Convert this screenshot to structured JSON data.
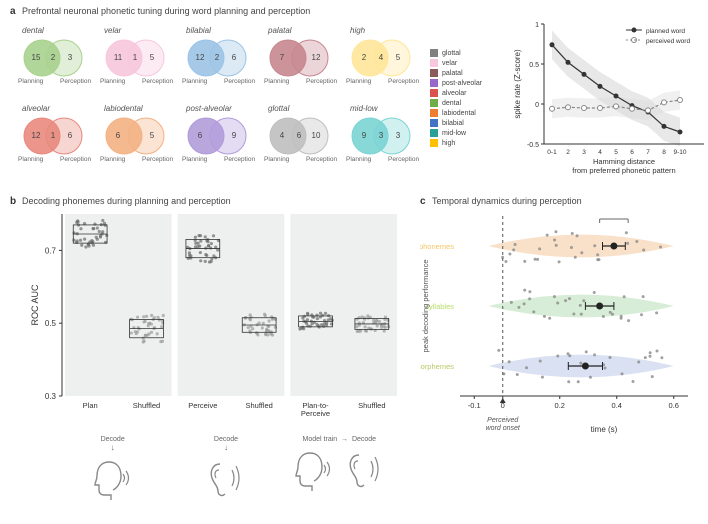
{
  "panel_a": {
    "label": "a",
    "title": "Prefrontal neuronal phonetic tuning during word planning and perception",
    "venns": [
      {
        "name": "dental",
        "color": "#a9d18e",
        "plan": 15,
        "both": 2,
        "perc": 3
      },
      {
        "name": "velar",
        "color": "#f7c7dc",
        "plan": 11,
        "both": 1,
        "perc": 5
      },
      {
        "name": "bilabial",
        "color": "#9cc3e6",
        "plan": 12,
        "both": 2,
        "perc": 6
      },
      {
        "name": "palatal",
        "color": "#c6878f",
        "plan": 7,
        "both": "",
        "perc": 12
      },
      {
        "name": "high",
        "color": "#ffe699",
        "plan": 2,
        "both": 4,
        "perc": 5
      },
      {
        "name": "alveolar",
        "color": "#e9897e",
        "plan": 12,
        "both": 1,
        "perc": 6
      },
      {
        "name": "labiodental",
        "color": "#f4b183",
        "plan": 6,
        "both": "",
        "perc": 5
      },
      {
        "name": "post-alveolar",
        "color": "#b19cd9",
        "plan": 6,
        "both": "",
        "perc": 9
      },
      {
        "name": "glottal",
        "color": "#bfbfbf",
        "plan": 4,
        "both": 6,
        "perc": 10
      },
      {
        "name": "mid-low",
        "color": "#7bd4d4",
        "plan": 9,
        "both": 3,
        "perc": 3
      }
    ],
    "legend": [
      {
        "label": "glottal",
        "color": "#808080"
      },
      {
        "label": "velar",
        "color": "#f7c7dc"
      },
      {
        "label": "palatal",
        "color": "#8b5a5a"
      },
      {
        "label": "post-alveolar",
        "color": "#9966cc"
      },
      {
        "label": "alveolar",
        "color": "#d9534f"
      },
      {
        "label": "dental",
        "color": "#70ad47"
      },
      {
        "label": "labiodental",
        "color": "#ed7d31"
      },
      {
        "label": "bilabial",
        "color": "#4472c4"
      },
      {
        "label": "mid-low",
        "color": "#2aa198"
      },
      {
        "label": "high",
        "color": "#ffc000"
      }
    ],
    "plan_label": "Planning",
    "perc_label": "Perception",
    "spike": {
      "ylabel": "spike rate (Z-score)",
      "xlabel": "Hamming distance\nfrom preferred phonetic pattern",
      "xlim": [
        0,
        10
      ],
      "ylim": [
        -0.5,
        1.0
      ],
      "yticks": [
        -0.5,
        0,
        0.5,
        1.0
      ],
      "xticks": [
        "0-1",
        "2",
        "3",
        "4",
        "5",
        "6",
        "7",
        "8",
        "9-10"
      ],
      "legend": [
        {
          "label": "planned word",
          "style": "solid",
          "marker": "filled"
        },
        {
          "label": "perceived word",
          "style": "dashed",
          "marker": "open"
        }
      ],
      "planned": {
        "x": [
          0.5,
          1.5,
          2.5,
          3.5,
          4.5,
          5.5,
          6.5,
          7.5,
          8.5
        ],
        "y": [
          0.74,
          0.52,
          0.37,
          0.22,
          0.1,
          -0.02,
          -0.1,
          -0.28,
          -0.35
        ],
        "color": "#333333"
      },
      "perceived": {
        "x": [
          0.5,
          1.5,
          2.5,
          3.5,
          4.5,
          5.5,
          6.5,
          7.5,
          8.5
        ],
        "y": [
          -0.06,
          -0.04,
          -0.05,
          -0.05,
          -0.03,
          -0.06,
          -0.08,
          0.02,
          0.05
        ],
        "color": "#888888"
      },
      "band_color": "#d9d9d9"
    }
  },
  "panel_b": {
    "label": "b",
    "title": "Decoding phonemes during planning and perception",
    "ylabel": "ROC AUC",
    "ylim": [
      0.3,
      0.8
    ],
    "yticks": [
      0.3,
      0.5,
      0.7
    ],
    "groups": [
      "Plan",
      "Shuffled",
      "Perceive",
      "Shuffled",
      "Plan-to-\nPerceive",
      "Shuffled"
    ],
    "band_bg": "#eef0ef",
    "data": [
      {
        "mean": 0.745,
        "spread": 0.025,
        "n": 40,
        "color": "#6a6a6a"
      },
      {
        "mean": 0.485,
        "spread": 0.025,
        "n": 40,
        "color": "#9a9a9a"
      },
      {
        "mean": 0.705,
        "spread": 0.025,
        "n": 40,
        "color": "#6a6a6a"
      },
      {
        "mean": 0.495,
        "spread": 0.02,
        "n": 40,
        "color": "#9a9a9a"
      },
      {
        "mean": 0.505,
        "spread": 0.015,
        "n": 40,
        "color": "#6a6a6a"
      },
      {
        "mean": 0.498,
        "spread": 0.015,
        "n": 40,
        "color": "#9a9a9a"
      }
    ],
    "decode_label": "Decode",
    "train_label": "Model train",
    "arrow": "→",
    "icon_color": "#888888"
  },
  "panel_c": {
    "label": "c",
    "title": "Temporal dynamics during perception",
    "xlabel": "time (s)",
    "ylabel": "peak decoding performance",
    "onset_label": "Perceived\nword onset",
    "xlim": [
      -0.15,
      0.65
    ],
    "xticks": [
      -0.1,
      0,
      0.2,
      0.4,
      0.6
    ],
    "rows": [
      {
        "name": "phonemes",
        "color": "#f4c79b",
        "mean": 0.39,
        "err": 0.04
      },
      {
        "name": "syllables",
        "color": "#b6deb6",
        "mean": 0.34,
        "err": 0.05
      },
      {
        "name": "morphemes",
        "color": "#b9c9e8",
        "mean": 0.29,
        "err": 0.06
      }
    ],
    "scatter_seed": 7,
    "dot_color": "#8a8a8a",
    "bracket": true
  }
}
